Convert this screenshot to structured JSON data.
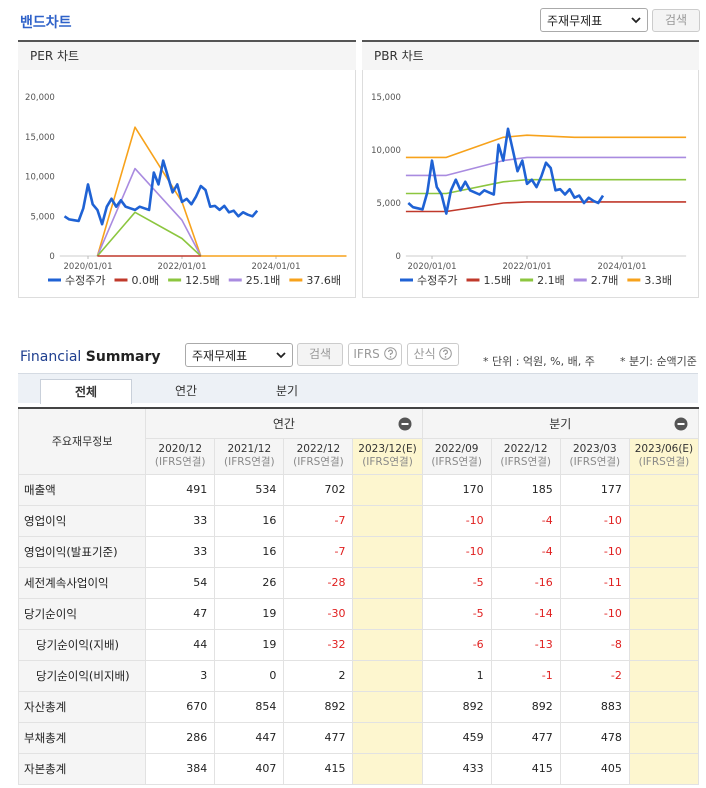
{
  "header": {
    "title": "밴드차트",
    "select": "주재무제표",
    "button": "검색"
  },
  "chart_data": [
    {
      "type": "line",
      "title": "PER 차트",
      "xlim": [
        2019.4,
        2025.5
      ],
      "xticks": [
        {
          "value": 2020,
          "label": "2020/01/01"
        },
        {
          "value": 2022,
          "label": "2022/01/01"
        },
        {
          "value": 2024,
          "label": "2024/01/01"
        }
      ],
      "ylim": [
        0,
        20000
      ],
      "yticks": [
        0,
        {
          "value": 5000,
          "label": "5,000"
        },
        {
          "value": 10000,
          "label": "10,000"
        },
        {
          "value": 15000,
          "label": "15,000"
        },
        {
          "value": 20000,
          "label": "20,000"
        }
      ],
      "series": [
        {
          "name": "수정주가",
          "color": "#1f62d4",
          "x": [
            2019.5,
            2019.6,
            2019.7,
            2019.8,
            2019.9,
            2020.0,
            2020.1,
            2020.2,
            2020.3,
            2020.4,
            2020.5,
            2020.6,
            2020.7,
            2020.8,
            2020.9,
            2021.0,
            2021.1,
            2021.2,
            2021.3,
            2021.4,
            2021.5,
            2021.6,
            2021.7,
            2021.8,
            2021.9,
            2022.0,
            2022.1,
            2022.2,
            2022.3,
            2022.4,
            2022.5,
            2022.6,
            2022.7,
            2022.8,
            2022.9,
            2023.0,
            2023.1,
            2023.2,
            2023.3,
            2023.4,
            2023.5,
            2023.6
          ],
          "values": [
            5000,
            4600,
            4500,
            4400,
            6000,
            9000,
            6500,
            5800,
            4000,
            6200,
            7200,
            6200,
            7000,
            6200,
            6000,
            5800,
            6200,
            6000,
            5800,
            10500,
            9000,
            12000,
            10000,
            8000,
            9000,
            6800,
            7200,
            6500,
            7500,
            8800,
            8300,
            6200,
            6300,
            5800,
            6300,
            5500,
            5700,
            5000,
            5500,
            5200,
            5000,
            5700
          ]
        },
        {
          "name": "0.0배",
          "color": "#c0392b",
          "x": [
            2020.2,
            2022.4
          ],
          "values": [
            0,
            0
          ]
        },
        {
          "name": "12.5배",
          "color": "#8cc63f",
          "x": [
            2020.2,
            2021.0,
            2022.0,
            2022.4
          ],
          "values": [
            0,
            5500,
            2200,
            0
          ]
        },
        {
          "name": "25.1배",
          "color": "#a98be0",
          "x": [
            2020.2,
            2021.0,
            2022.0,
            2022.4
          ],
          "values": [
            0,
            11000,
            4500,
            0
          ]
        },
        {
          "name": "37.6배",
          "color": "#f7a21b",
          "x": [
            2020.2,
            2021.0,
            2022.0,
            2022.4,
            2025.5
          ],
          "values": [
            0,
            16200,
            6800,
            0,
            0
          ]
        }
      ]
    },
    {
      "type": "line",
      "title": "PBR 차트",
      "xlim": [
        2019.45,
        2025.35
      ],
      "xticks": [
        {
          "value": 2020,
          "label": "2020/01/01"
        },
        {
          "value": 2022,
          "label": "2022/01/01"
        },
        {
          "value": 2024,
          "label": "2024/01/01"
        }
      ],
      "ylim": [
        0,
        15000
      ],
      "yticks": [
        0,
        {
          "value": 5000,
          "label": "5,000"
        },
        {
          "value": 10000,
          "label": "10,000"
        },
        {
          "value": 15000,
          "label": "15,000"
        }
      ],
      "series": [
        {
          "name": "수정주가",
          "color": "#1f62d4",
          "x": [
            2019.5,
            2019.6,
            2019.7,
            2019.8,
            2019.9,
            2020.0,
            2020.1,
            2020.2,
            2020.3,
            2020.4,
            2020.5,
            2020.6,
            2020.7,
            2020.8,
            2020.9,
            2021.0,
            2021.1,
            2021.2,
            2021.3,
            2021.4,
            2021.5,
            2021.6,
            2021.7,
            2021.8,
            2021.9,
            2022.0,
            2022.1,
            2022.2,
            2022.3,
            2022.4,
            2022.5,
            2022.6,
            2022.7,
            2022.8,
            2022.9,
            2023.0,
            2023.1,
            2023.2,
            2023.3,
            2023.4,
            2023.5,
            2023.6
          ],
          "values": [
            5000,
            4600,
            4500,
            4400,
            6000,
            9000,
            6500,
            5800,
            4000,
            6200,
            7200,
            6200,
            7000,
            6200,
            6000,
            5800,
            6200,
            6000,
            5800,
            10500,
            9000,
            12000,
            10000,
            8000,
            9000,
            6800,
            7200,
            6500,
            7500,
            8800,
            8300,
            6200,
            6300,
            5800,
            6300,
            5500,
            5700,
            5000,
            5500,
            5200,
            5000,
            5700
          ]
        },
        {
          "name": "1.5배",
          "color": "#c0392b",
          "x": [
            2019.45,
            2020.3,
            2021.5,
            2022.0,
            2023.0,
            2025.35
          ],
          "values": [
            4200,
            4200,
            5000,
            5100,
            5100,
            5100
          ]
        },
        {
          "name": "2.1배",
          "color": "#8cc63f",
          "x": [
            2019.45,
            2020.3,
            2021.5,
            2022.0,
            2023.0,
            2025.35
          ],
          "values": [
            5900,
            5900,
            7000,
            7200,
            7200,
            7200
          ]
        },
        {
          "name": "2.7배",
          "color": "#a98be0",
          "x": [
            2019.45,
            2020.3,
            2021.5,
            2022.0,
            2023.0,
            2025.35
          ],
          "values": [
            7600,
            7600,
            9000,
            9300,
            9300,
            9300
          ]
        },
        {
          "name": "3.3배",
          "color": "#f7a21b",
          "x": [
            2019.45,
            2020.3,
            2021.5,
            2022.0,
            2023.0,
            2025.35
          ],
          "values": [
            9300,
            9300,
            11200,
            11400,
            11200,
            11200
          ]
        }
      ]
    }
  ],
  "summary": {
    "title": "Financial",
    "title_bold": "Summary",
    "select": "주재무제표",
    "buttons": [
      "검색",
      "IFRS",
      "산식"
    ],
    "notes": [
      "* 단위 : 억원, %, 배, 주",
      "* 분기: 순액기준"
    ],
    "tabs": [
      "전체",
      "연간",
      "분기"
    ],
    "table": {
      "corner": "주요재무정보",
      "groups": [
        "연간",
        "분기"
      ],
      "columns": [
        {
          "period": "2020/12",
          "basis": "(IFRS연결)"
        },
        {
          "period": "2021/12",
          "basis": "(IFRS연결)"
        },
        {
          "period": "2022/12",
          "basis": "(IFRS연결)"
        },
        {
          "period": "2023/12(E)",
          "basis": "(IFRS연결)"
        },
        {
          "period": "2022/09",
          "basis": "(IFRS연결)"
        },
        {
          "period": "2022/12",
          "basis": "(IFRS연결)"
        },
        {
          "period": "2023/03",
          "basis": "(IFRS연결)"
        },
        {
          "period": "2023/06(E)",
          "basis": "(IFRS연결)"
        }
      ],
      "rows": [
        {
          "label": "매출액",
          "values": [
            491,
            534,
            702,
            null,
            170,
            185,
            177,
            null
          ]
        },
        {
          "label": "영업이익",
          "values": [
            33,
            16,
            -7,
            null,
            -10,
            -4,
            -10,
            null
          ]
        },
        {
          "label": "영업이익(발표기준)",
          "values": [
            33,
            16,
            -7,
            null,
            -10,
            -4,
            -10,
            null
          ]
        },
        {
          "label": "세전계속사업이익",
          "values": [
            54,
            26,
            -28,
            null,
            -5,
            -16,
            -11,
            null
          ]
        },
        {
          "label": "당기순이익",
          "values": [
            47,
            19,
            -30,
            null,
            -5,
            -14,
            -10,
            null
          ]
        },
        {
          "label": "당기순이익(지배)",
          "sub": true,
          "values": [
            44,
            19,
            -32,
            null,
            -6,
            -13,
            -8,
            null
          ]
        },
        {
          "label": "당기순이익(비지배)",
          "sub": true,
          "values": [
            3,
            0,
            2,
            null,
            1,
            -1,
            -2,
            null
          ]
        },
        {
          "label": "자산총계",
          "values": [
            670,
            854,
            892,
            null,
            892,
            892,
            883,
            null
          ]
        },
        {
          "label": "부채총계",
          "values": [
            286,
            447,
            477,
            null,
            459,
            477,
            478,
            null
          ]
        },
        {
          "label": "자본총계",
          "values": [
            384,
            407,
            415,
            null,
            433,
            415,
            405,
            null
          ]
        }
      ]
    }
  }
}
